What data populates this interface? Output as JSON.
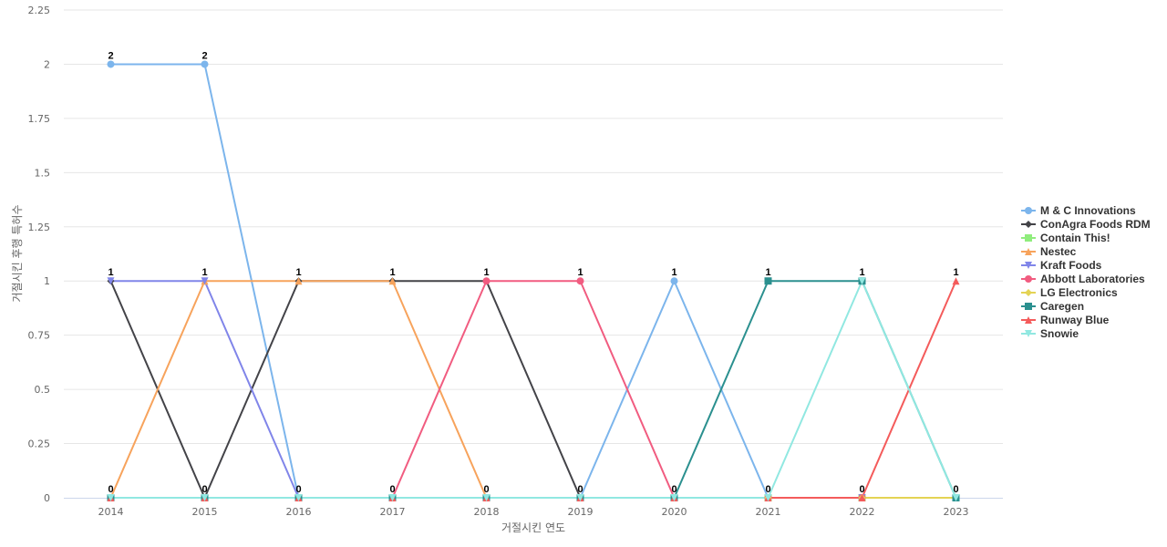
{
  "chart_data": {
    "type": "line",
    "xlabel": "거절시킨 연도",
    "ylabel": "거절시킨 후행 특허수",
    "categories": [
      "2014",
      "2015",
      "2016",
      "2017",
      "2018",
      "2019",
      "2020",
      "2021",
      "2022",
      "2023"
    ],
    "ylim": [
      0,
      2.25
    ],
    "yticks": [
      "0",
      "0.25",
      "0.5",
      "0.75",
      "1",
      "1.25",
      "1.5",
      "1.75",
      "2",
      "2.25"
    ],
    "grid": "horizontal",
    "legend_position": "right",
    "data_labels": [
      "0",
      "0",
      "0",
      "0",
      "0",
      "0",
      "0",
      "0",
      "0",
      "0"
    ],
    "series": [
      {
        "name": "M & C Innovations",
        "color": "#7cb5ec",
        "marker": "circle",
        "values": [
          2,
          2,
          0,
          0,
          0,
          0,
          1,
          0,
          0,
          0
        ]
      },
      {
        "name": "ConAgra Foods RDM",
        "color": "#434348",
        "marker": "diamond",
        "values": [
          1,
          0,
          1,
          1,
          1,
          0,
          0,
          0,
          0,
          0
        ]
      },
      {
        "name": "Contain This!",
        "color": "#90ed7d",
        "marker": "square",
        "values": [
          0,
          0,
          0,
          0,
          0,
          0,
          0,
          0,
          0,
          0
        ]
      },
      {
        "name": "Nestec",
        "color": "#f7a35c",
        "marker": "triangle",
        "values": [
          0,
          1,
          1,
          1,
          0,
          0,
          0,
          0,
          0,
          0
        ]
      },
      {
        "name": "Kraft Foods",
        "color": "#8085e9",
        "marker": "triangle-down",
        "values": [
          1,
          1,
          0,
          0,
          0,
          0,
          0,
          0,
          0,
          0
        ]
      },
      {
        "name": "Abbott Laboratories",
        "color": "#f15c80",
        "marker": "circle",
        "values": [
          0,
          0,
          0,
          0,
          1,
          1,
          0,
          0,
          0,
          0
        ]
      },
      {
        "name": "LG Electronics",
        "color": "#e4d354",
        "marker": "diamond",
        "values": [
          0,
          0,
          0,
          0,
          0,
          0,
          0,
          0,
          0,
          0
        ]
      },
      {
        "name": "Caregen",
        "color": "#2b908f",
        "marker": "square",
        "values": [
          0,
          0,
          0,
          0,
          0,
          0,
          0,
          1,
          1,
          0
        ]
      },
      {
        "name": "Runway Blue",
        "color": "#f45b5b",
        "marker": "triangle",
        "values": [
          0,
          0,
          0,
          0,
          0,
          0,
          0,
          0,
          0,
          1
        ]
      },
      {
        "name": "Snowie",
        "color": "#91e8e1",
        "marker": "triangle-down",
        "values": [
          0,
          0,
          0,
          0,
          0,
          0,
          0,
          0,
          1,
          0
        ]
      }
    ]
  }
}
